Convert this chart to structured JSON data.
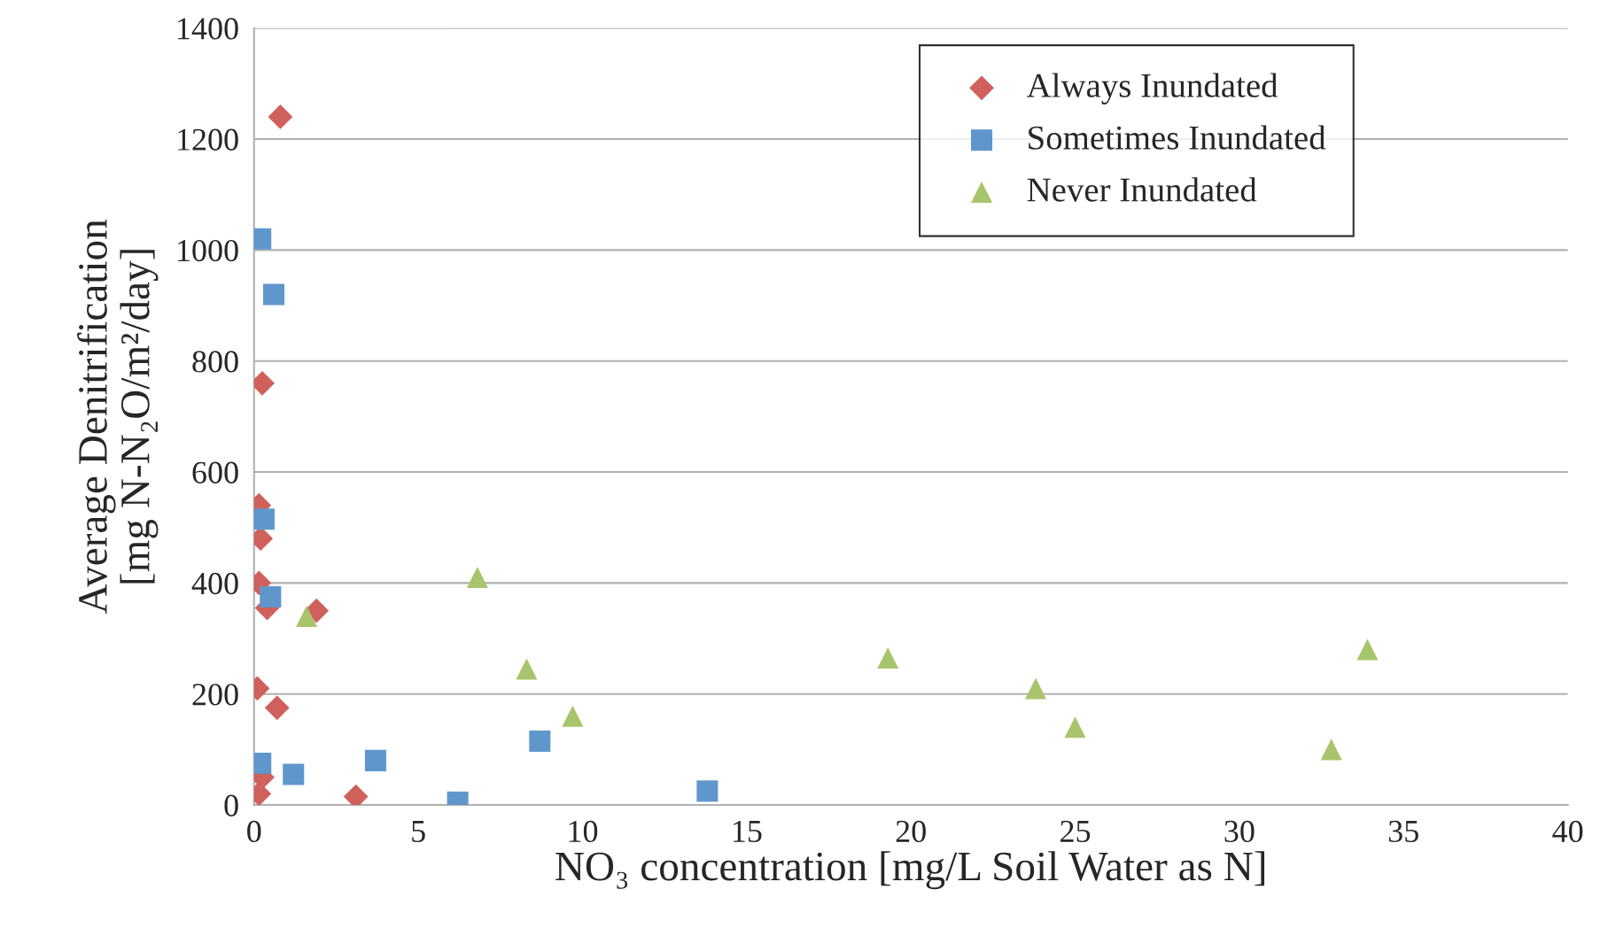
{
  "chart_data": {
    "type": "scatter",
    "xlabel": "NO₃ concentration [mg/L Soil Water as N]",
    "ylabel": "Average Denitrification\n[mg N-N₂O/m²/day]",
    "xlim": [
      0,
      40
    ],
    "xticks": [
      0,
      5,
      10,
      15,
      20,
      25,
      30,
      35,
      40
    ],
    "ylim": [
      0,
      1400
    ],
    "yticks": [
      0,
      200,
      400,
      600,
      800,
      1000,
      1200,
      1400
    ],
    "grid": "y",
    "legend": "top right",
    "series": [
      {
        "name": "Always Inundated",
        "color": "#d0605c",
        "marker": "diamond",
        "x": [
          0.8,
          0.25,
          0.15,
          0.2,
          0.15,
          0.4,
          1.9,
          0.1,
          0.7,
          0.25,
          0.15,
          3.1
        ],
        "values": [
          1240,
          760,
          540,
          480,
          400,
          355,
          350,
          210,
          175,
          50,
          20,
          15
        ]
      },
      {
        "name": "Sometimes Inundated",
        "color": "#5f97cc",
        "marker": "square",
        "x": [
          0.2,
          0.6,
          0.3,
          0.5,
          0.2,
          1.2,
          3.7,
          6.2,
          8.7,
          13.8
        ],
        "values": [
          1020,
          920,
          515,
          375,
          75,
          55,
          80,
          5,
          115,
          25
        ]
      },
      {
        "name": "Never Inundated",
        "color": "#a8c46c",
        "marker": "triangle",
        "x": [
          1.6,
          6.8,
          8.3,
          9.7,
          19.3,
          23.8,
          25.0,
          32.8,
          33.9
        ],
        "values": [
          340,
          410,
          245,
          160,
          265,
          210,
          140,
          100,
          280
        ]
      }
    ]
  }
}
